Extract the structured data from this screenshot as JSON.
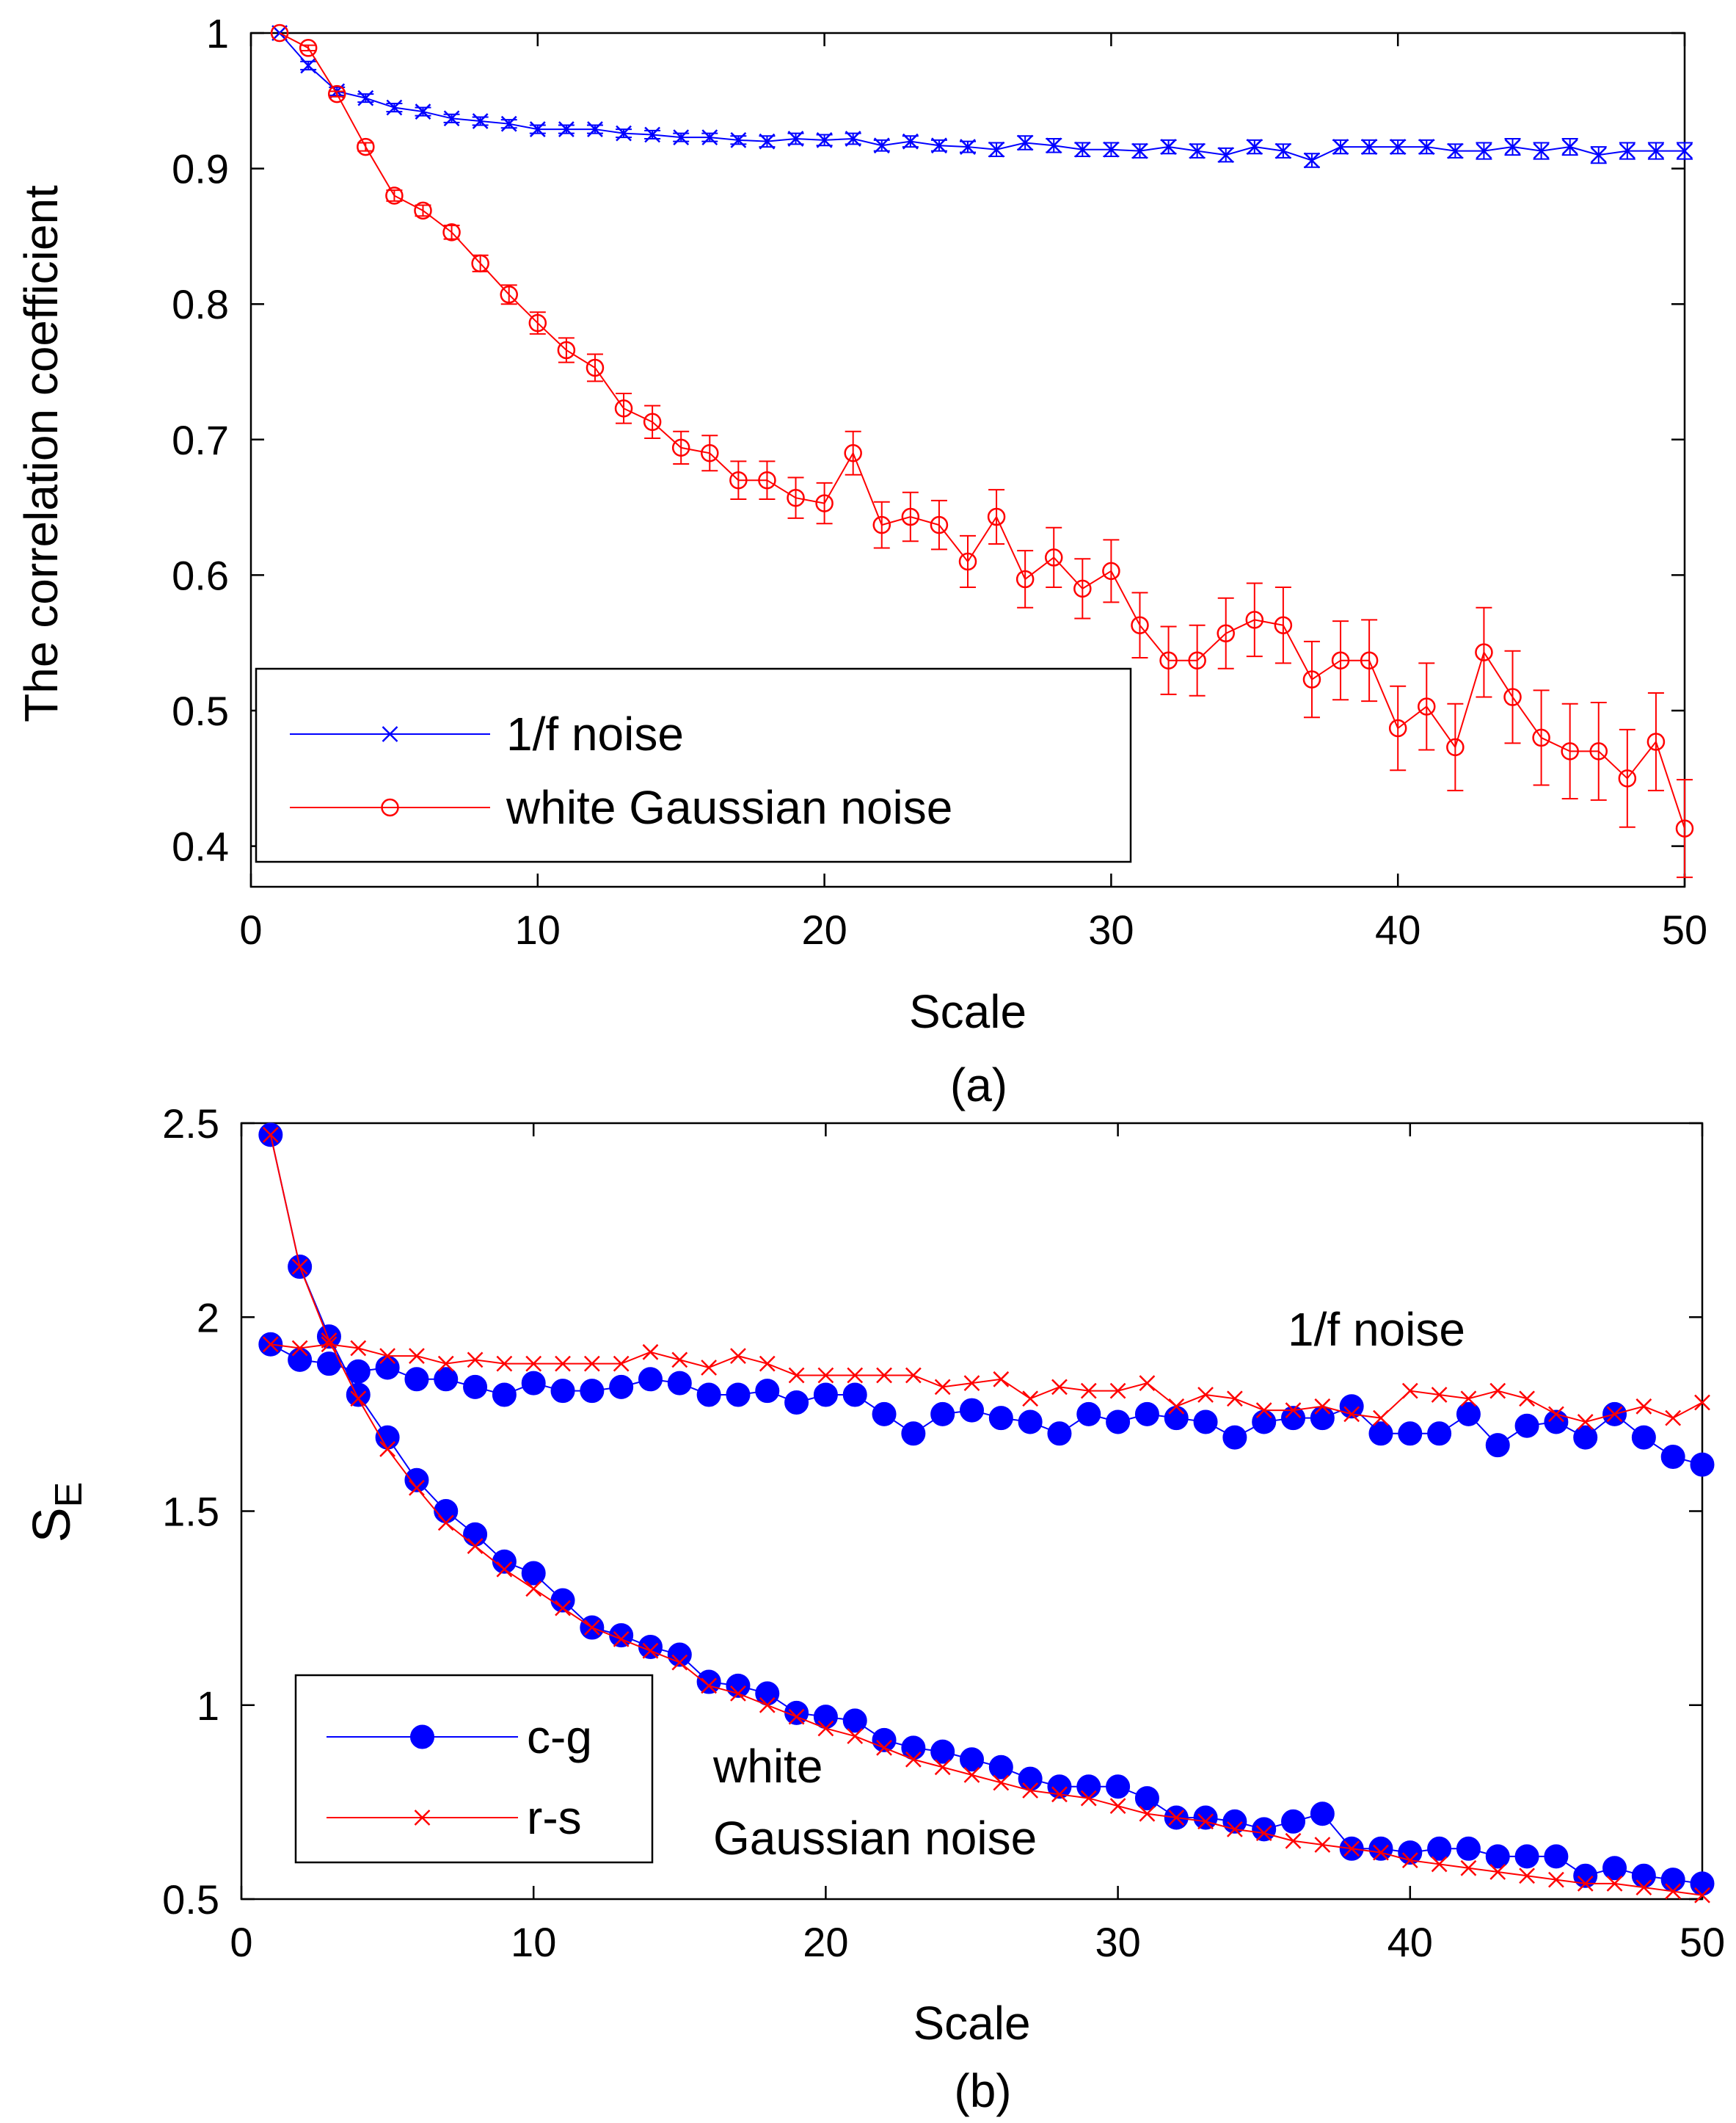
{
  "chart_data": [
    {
      "id": "a",
      "type": "line",
      "caption": "(a)",
      "xlabel": "Scale",
      "ylabel": "The correlation coefficient",
      "xlim": [
        0,
        50
      ],
      "ylim": [
        0.37,
        1.0
      ],
      "xticks": [
        0,
        10,
        20,
        30,
        40,
        50
      ],
      "yticks": [
        0.4,
        0.5,
        0.6,
        0.7,
        0.8,
        0.9,
        1.0
      ],
      "ytick_labels": [
        "0.4",
        "0.5",
        "0.6",
        "0.7",
        "0.8",
        "0.9",
        "1"
      ],
      "legend_position": "lower-left",
      "x": [
        1,
        2,
        3,
        4,
        5,
        6,
        7,
        8,
        9,
        10,
        11,
        12,
        13,
        14,
        15,
        16,
        17,
        18,
        19,
        20,
        21,
        22,
        23,
        24,
        25,
        26,
        27,
        28,
        29,
        30,
        31,
        32,
        33,
        34,
        35,
        36,
        37,
        38,
        39,
        40,
        41,
        42,
        43,
        44,
        45,
        46,
        47,
        48,
        49,
        50
      ],
      "series": [
        {
          "name": "1/f noise",
          "color": "#0000ff",
          "marker": "x",
          "values": [
            1.0,
            0.976,
            0.957,
            0.952,
            0.945,
            0.942,
            0.937,
            0.935,
            0.933,
            0.929,
            0.929,
            0.929,
            0.926,
            0.925,
            0.923,
            0.923,
            0.921,
            0.92,
            0.922,
            0.921,
            0.922,
            0.917,
            0.92,
            0.917,
            0.916,
            0.914,
            0.919,
            0.917,
            0.914,
            0.914,
            0.913,
            0.916,
            0.913,
            0.91,
            0.916,
            0.913,
            0.906,
            0.916,
            0.916,
            0.916,
            0.916,
            0.913,
            0.913,
            0.916,
            0.913,
            0.916,
            0.91,
            0.913,
            0.913,
            0.913
          ],
          "errors": [
            0,
            0.003,
            0.003,
            0.003,
            0.003,
            0.003,
            0.003,
            0.003,
            0.003,
            0.003,
            0.003,
            0.003,
            0.003,
            0.003,
            0.003,
            0.003,
            0.003,
            0.004,
            0.004,
            0.004,
            0.004,
            0.004,
            0.004,
            0.004,
            0.004,
            0.005,
            0.005,
            0.005,
            0.005,
            0.005,
            0.005,
            0.005,
            0.005,
            0.005,
            0.005,
            0.005,
            0.005,
            0.005,
            0.005,
            0.005,
            0.005,
            0.005,
            0.006,
            0.006,
            0.006,
            0.006,
            0.006,
            0.006,
            0.006,
            0.006
          ]
        },
        {
          "name": "white Gaussian noise",
          "color": "#ff0000",
          "marker": "o",
          "values": [
            1.0,
            0.989,
            0.955,
            0.916,
            0.88,
            0.869,
            0.853,
            0.83,
            0.807,
            0.786,
            0.766,
            0.753,
            0.723,
            0.713,
            0.694,
            0.69,
            0.67,
            0.67,
            0.657,
            0.653,
            0.69,
            0.637,
            0.643,
            0.637,
            0.61,
            0.643,
            0.597,
            0.613,
            0.59,
            0.603,
            0.563,
            0.537,
            0.537,
            0.557,
            0.567,
            0.563,
            0.523,
            0.537,
            0.537,
            0.487,
            0.503,
            0.473,
            0.543,
            0.51,
            0.48,
            0.47,
            0.47,
            0.45,
            0.477,
            0.413
          ],
          "errors": [
            0,
            0.002,
            0.002,
            0.003,
            0.004,
            0.004,
            0.005,
            0.006,
            0.007,
            0.008,
            0.009,
            0.01,
            0.011,
            0.012,
            0.012,
            0.013,
            0.014,
            0.014,
            0.015,
            0.015,
            0.016,
            0.017,
            0.018,
            0.018,
            0.019,
            0.02,
            0.021,
            0.022,
            0.022,
            0.023,
            0.024,
            0.025,
            0.026,
            0.026,
            0.027,
            0.028,
            0.028,
            0.029,
            0.03,
            0.031,
            0.032,
            0.032,
            0.033,
            0.034,
            0.035,
            0.035,
            0.036,
            0.036,
            0.036,
            0.036
          ]
        }
      ]
    },
    {
      "id": "b",
      "type": "line",
      "caption": "(b)",
      "xlabel": "Scale",
      "ylabel": "S",
      "ylabel_subscript": "E",
      "xlim": [
        0,
        50
      ],
      "ylim": [
        0.5,
        2.5
      ],
      "xticks": [
        0,
        10,
        20,
        30,
        40,
        50
      ],
      "yticks": [
        0.5,
        1.0,
        1.5,
        2.0,
        2.5
      ],
      "ytick_labels": [
        "0.5",
        "1",
        "1.5",
        "2",
        "2.5"
      ],
      "legend_position": "lower-left",
      "annotations": [
        "1/f noise",
        "white",
        "Gaussian noise"
      ],
      "x": [
        1,
        2,
        3,
        4,
        5,
        6,
        7,
        8,
        9,
        10,
        11,
        12,
        13,
        14,
        15,
        16,
        17,
        18,
        19,
        20,
        21,
        22,
        23,
        24,
        25,
        26,
        27,
        28,
        29,
        30,
        31,
        32,
        33,
        34,
        35,
        36,
        37,
        38,
        39,
        40,
        41,
        42,
        43,
        44,
        45,
        46,
        47,
        48,
        49,
        50
      ],
      "series": [
        {
          "name": "c-g",
          "color": "#0000ff",
          "marker": "filled-circle",
          "groups": [
            {
              "label": "1/f noise",
              "values": [
                1.93,
                1.89,
                1.88,
                1.86,
                1.87,
                1.84,
                1.84,
                1.82,
                1.8,
                1.83,
                1.81,
                1.81,
                1.82,
                1.84,
                1.83,
                1.8,
                1.8,
                1.81,
                1.78,
                1.8,
                1.8,
                1.75,
                1.7,
                1.75,
                1.76,
                1.74,
                1.73,
                1.7,
                1.75,
                1.73,
                1.75,
                1.74,
                1.73,
                1.69,
                1.73,
                1.74,
                1.74,
                1.77,
                1.7,
                1.7,
                1.7,
                1.75,
                1.67,
                1.72,
                1.73,
                1.69,
                1.75,
                1.69,
                1.64,
                1.62
              ]
            },
            {
              "label": "white Gaussian noise",
              "values": [
                2.47,
                2.13,
                1.95,
                1.8,
                1.69,
                1.58,
                1.5,
                1.44,
                1.37,
                1.34,
                1.27,
                1.2,
                1.18,
                1.15,
                1.13,
                1.06,
                1.05,
                1.03,
                0.98,
                0.97,
                0.96,
                0.91,
                0.89,
                0.88,
                0.86,
                0.84,
                0.81,
                0.79,
                0.79,
                0.79,
                0.76,
                0.71,
                0.71,
                0.7,
                0.68,
                0.7,
                0.72,
                0.63,
                0.63,
                0.62,
                0.63,
                0.63,
                0.61,
                0.61,
                0.61,
                0.56,
                0.58,
                0.56,
                0.55,
                0.54
              ]
            }
          ]
        },
        {
          "name": "r-s",
          "color": "#ff0000",
          "marker": "x",
          "groups": [
            {
              "label": "1/f noise",
              "values": [
                1.93,
                1.92,
                1.93,
                1.92,
                1.9,
                1.9,
                1.88,
                1.89,
                1.88,
                1.88,
                1.88,
                1.88,
                1.88,
                1.91,
                1.89,
                1.87,
                1.9,
                1.88,
                1.85,
                1.85,
                1.85,
                1.85,
                1.85,
                1.82,
                1.83,
                1.84,
                1.79,
                1.82,
                1.81,
                1.81,
                1.83,
                1.77,
                1.8,
                1.79,
                1.76,
                1.76,
                1.77,
                1.75,
                1.74,
                1.81,
                1.8,
                1.79,
                1.81,
                1.79,
                1.75,
                1.73,
                1.75,
                1.77,
                1.74,
                1.78
              ]
            },
            {
              "label": "white Gaussian noise",
              "values": [
                2.47,
                2.13,
                1.94,
                1.79,
                1.66,
                1.56,
                1.47,
                1.41,
                1.35,
                1.3,
                1.25,
                1.2,
                1.17,
                1.14,
                1.11,
                1.05,
                1.03,
                1.0,
                0.97,
                0.94,
                0.92,
                0.89,
                0.86,
                0.84,
                0.82,
                0.8,
                0.78,
                0.77,
                0.76,
                0.74,
                0.72,
                0.71,
                0.7,
                0.68,
                0.67,
                0.65,
                0.64,
                0.63,
                0.62,
                0.6,
                0.59,
                0.58,
                0.57,
                0.56,
                0.55,
                0.54,
                0.54,
                0.53,
                0.52,
                0.51
              ]
            }
          ]
        }
      ]
    }
  ]
}
